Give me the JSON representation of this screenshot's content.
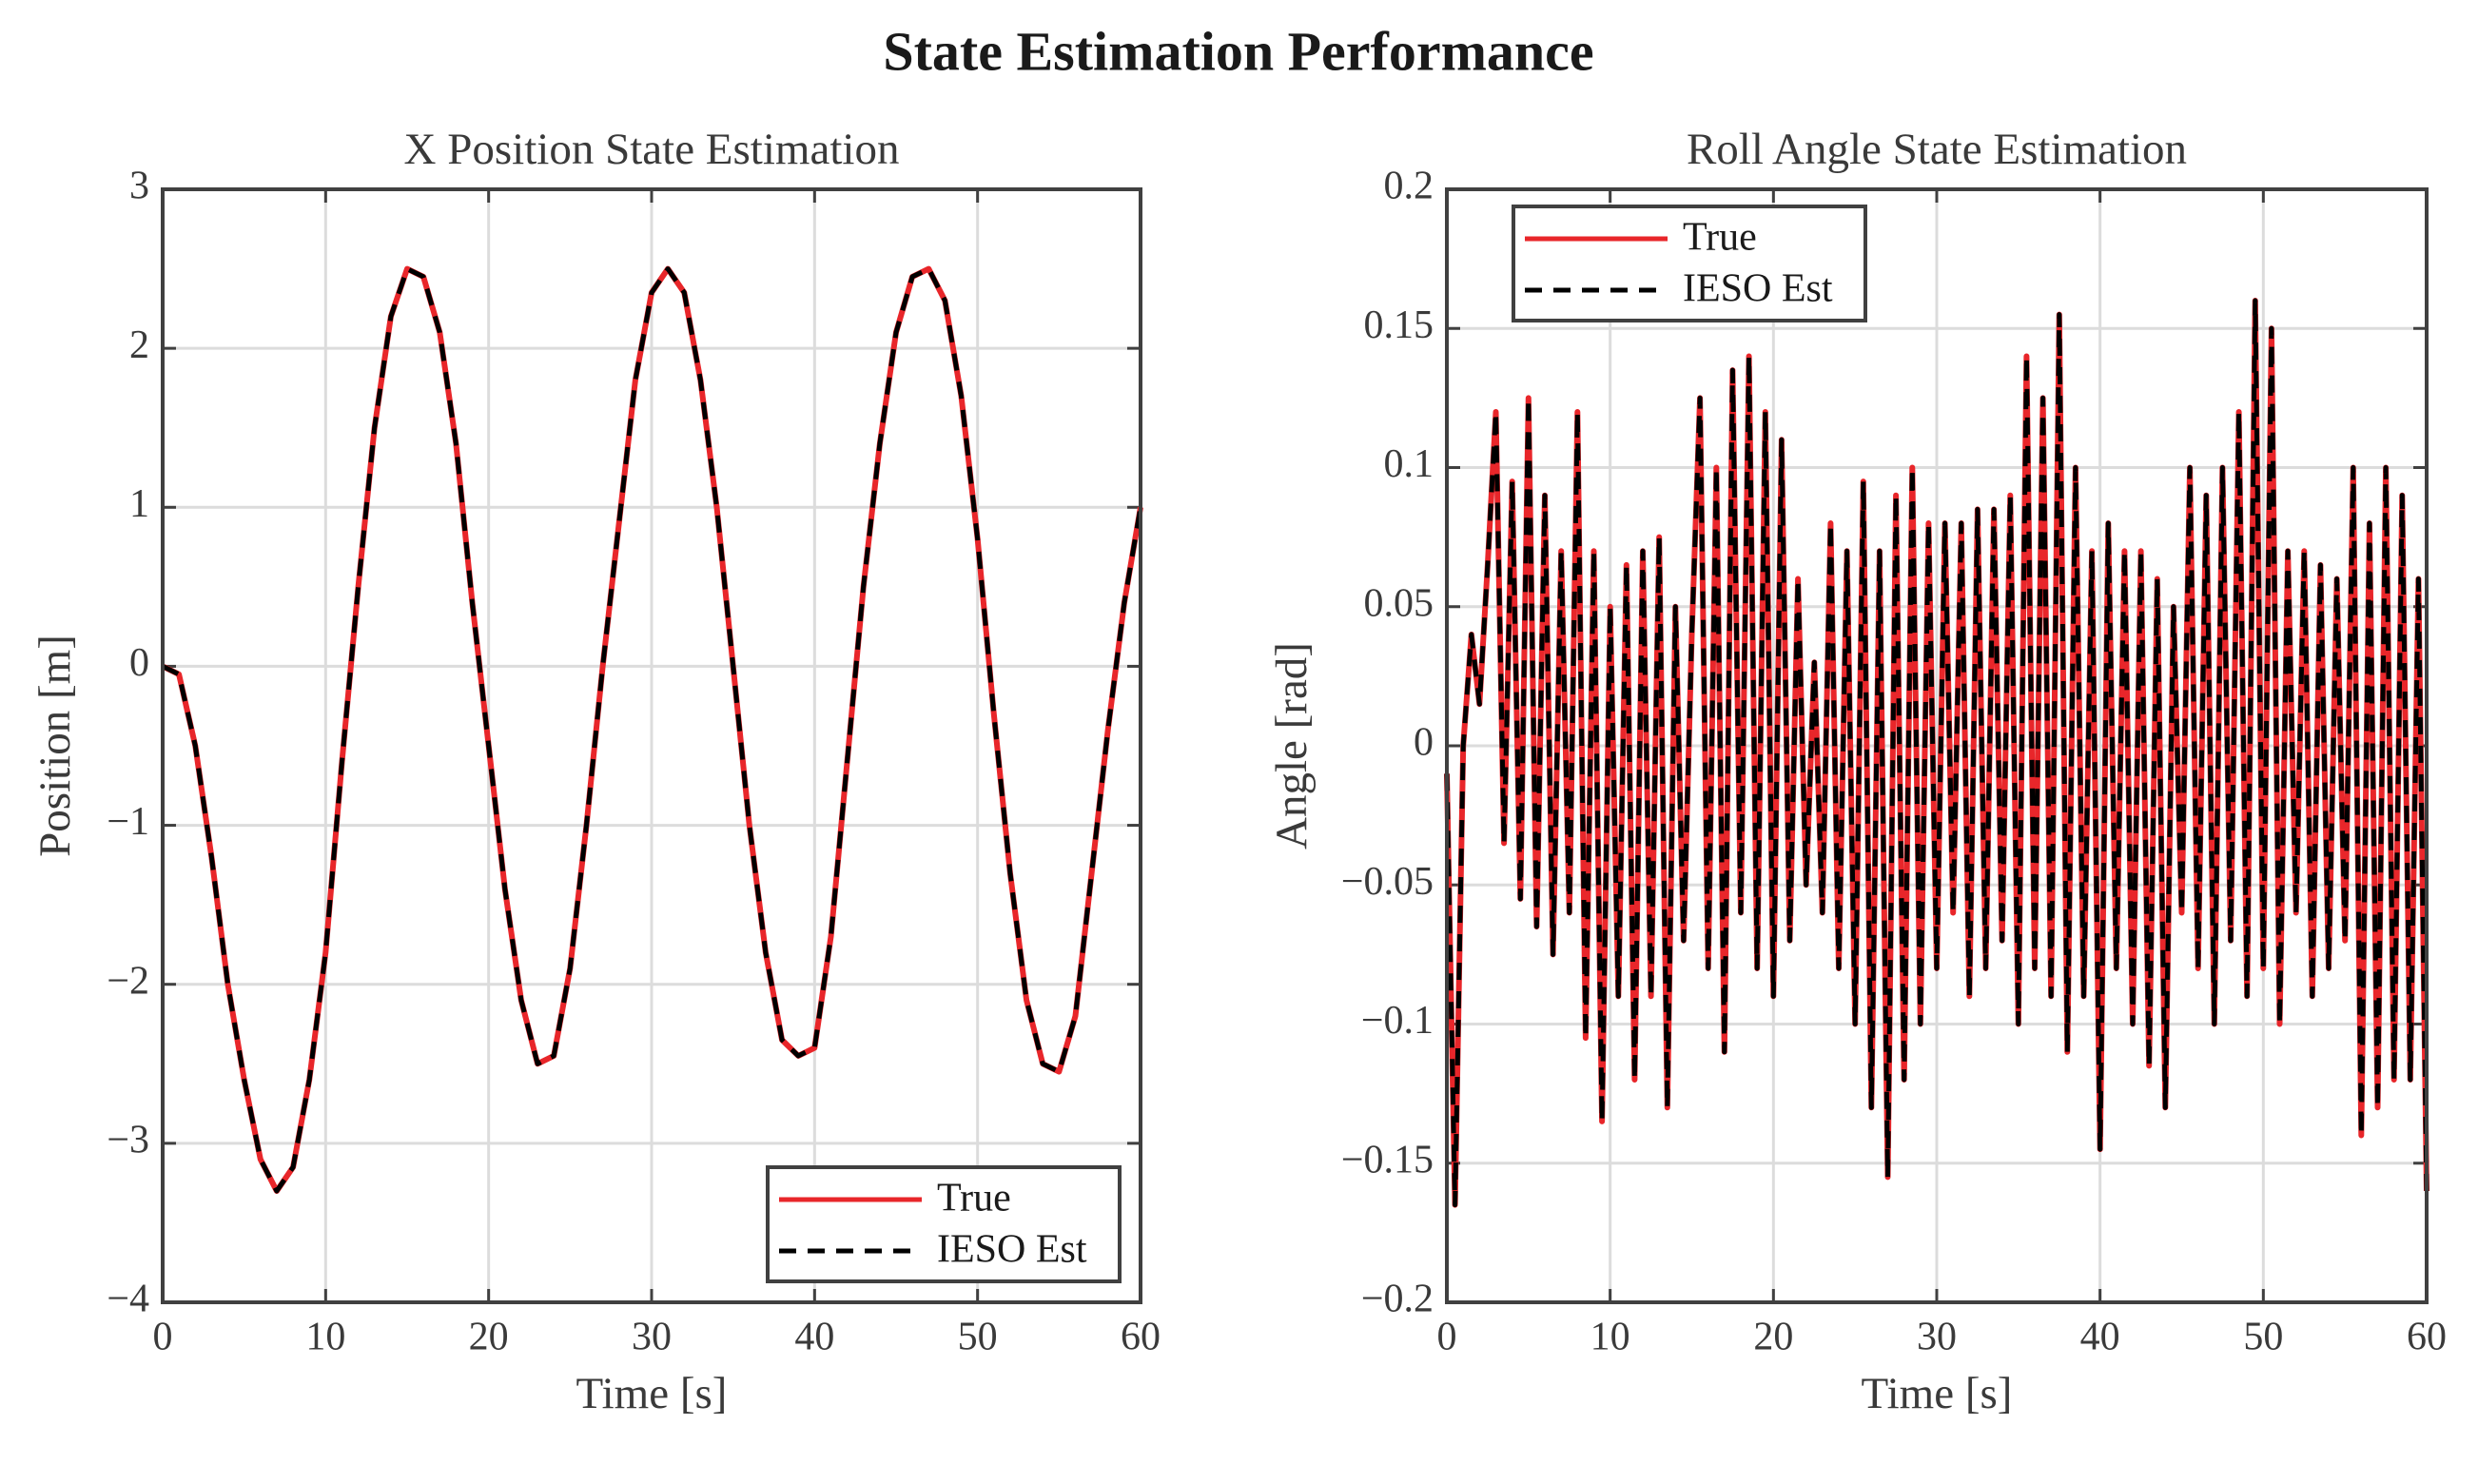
{
  "title": "State Estimation Performance",
  "chart_data": [
    {
      "type": "line",
      "title": "X Position State Estimation",
      "xlabel": "Time [s]",
      "ylabel": "Position [m]",
      "x": [
        0,
        1,
        2,
        3,
        4,
        5,
        6,
        7,
        8,
        9,
        10,
        11,
        12,
        13,
        14,
        15,
        16,
        17,
        18,
        19,
        20,
        21,
        22,
        23,
        24,
        25,
        26,
        27,
        28,
        29,
        30,
        31,
        32,
        33,
        34,
        35,
        36,
        37,
        38,
        39,
        40,
        41,
        42,
        43,
        44,
        45,
        46,
        47,
        48,
        49,
        50,
        51,
        52,
        53,
        54,
        55,
        56,
        57,
        58,
        59,
        60
      ],
      "series": [
        {
          "name": "True",
          "color": "#e8262a",
          "style": "solid",
          "values": [
            0,
            -0.05,
            -0.5,
            -1.2,
            -2.0,
            -2.6,
            -3.1,
            -3.3,
            -3.15,
            -2.6,
            -1.8,
            -0.6,
            0.5,
            1.5,
            2.2,
            2.5,
            2.45,
            2.1,
            1.4,
            0.4,
            -0.5,
            -1.4,
            -2.1,
            -2.5,
            -2.45,
            -1.9,
            -1.0,
            0.0,
            0.9,
            1.8,
            2.35,
            2.5,
            2.35,
            1.8,
            1.0,
            0.0,
            -1.0,
            -1.8,
            -2.35,
            -2.45,
            -2.4,
            -1.7,
            -0.6,
            0.5,
            1.4,
            2.1,
            2.45,
            2.5,
            2.3,
            1.7,
            0.8,
            -0.3,
            -1.3,
            -2.1,
            -2.5,
            -2.55,
            -2.2,
            -1.3,
            -0.4,
            0.4,
            1.0
          ]
        },
        {
          "name": "IESO Est",
          "color": "#000000",
          "style": "dashed",
          "values": [
            0,
            -0.05,
            -0.5,
            -1.2,
            -2.0,
            -2.6,
            -3.1,
            -3.3,
            -3.15,
            -2.6,
            -1.8,
            -0.6,
            0.5,
            1.5,
            2.2,
            2.5,
            2.45,
            2.1,
            1.4,
            0.4,
            -0.5,
            -1.4,
            -2.1,
            -2.5,
            -2.45,
            -1.9,
            -1.0,
            0.0,
            0.9,
            1.8,
            2.35,
            2.5,
            2.35,
            1.8,
            1.0,
            0.0,
            -1.0,
            -1.8,
            -2.35,
            -2.45,
            -2.4,
            -1.7,
            -0.6,
            0.5,
            1.4,
            2.1,
            2.45,
            2.5,
            2.3,
            1.7,
            0.8,
            -0.3,
            -1.3,
            -2.1,
            -2.5,
            -2.55,
            -2.2,
            -1.3,
            -0.4,
            0.4,
            1.0
          ]
        }
      ],
      "xlim": [
        0,
        60
      ],
      "xticks": [
        0,
        10,
        20,
        30,
        40,
        50,
        60
      ],
      "ylim": [
        -4,
        3
      ],
      "yticks": [
        {
          "value": -4,
          "label": "−4"
        },
        {
          "value": -3,
          "label": "−3"
        },
        {
          "value": -2,
          "label": "−2"
        },
        {
          "value": -1,
          "label": "−1"
        },
        0,
        1,
        2,
        3
      ],
      "grid": true,
      "legend": "southeast"
    },
    {
      "type": "line",
      "title": "Roll Angle State Estimation",
      "xlabel": "Time [s]",
      "ylabel": "Angle [rad]",
      "x": [
        0,
        0.5,
        1,
        1.5,
        2,
        2.5,
        3,
        3.5,
        4,
        4.5,
        5,
        5.5,
        6,
        6.5,
        7,
        7.5,
        8,
        8.5,
        9,
        9.5,
        10,
        10.5,
        11,
        11.5,
        12,
        12.5,
        13,
        13.5,
        14,
        14.5,
        15,
        15.5,
        16,
        16.5,
        17,
        17.5,
        18,
        18.5,
        19,
        19.5,
        20,
        20.5,
        21,
        21.5,
        22,
        22.5,
        23,
        23.5,
        24,
        24.5,
        25,
        25.5,
        26,
        26.5,
        27,
        27.5,
        28,
        28.5,
        29,
        29.5,
        30,
        30.5,
        31,
        31.5,
        32,
        32.5,
        33,
        33.5,
        34,
        34.5,
        35,
        35.5,
        36,
        36.5,
        37,
        37.5,
        38,
        38.5,
        39,
        39.5,
        40,
        40.5,
        41,
        41.5,
        42,
        42.5,
        43,
        43.5,
        44,
        44.5,
        45,
        45.5,
        46,
        46.5,
        47,
        47.5,
        48,
        48.5,
        49,
        49.5,
        50,
        50.5,
        51,
        51.5,
        52,
        52.5,
        53,
        53.5,
        54,
        54.5,
        55,
        55.5,
        56,
        56.5,
        57,
        57.5,
        58,
        58.5,
        59,
        59.5,
        60
      ],
      "series": [
        {
          "name": "True",
          "color": "#e8262a",
          "style": "solid",
          "values": [
            -0.01,
            -0.165,
            0.0,
            0.04,
            0.015,
            0.065,
            0.12,
            -0.035,
            0.095,
            -0.055,
            0.125,
            -0.065,
            0.09,
            -0.075,
            0.07,
            -0.06,
            0.12,
            -0.105,
            0.07,
            -0.135,
            0.05,
            -0.09,
            0.065,
            -0.12,
            0.07,
            -0.09,
            0.075,
            -0.13,
            0.05,
            -0.07,
            0.04,
            0.125,
            -0.08,
            0.1,
            -0.11,
            0.135,
            -0.06,
            0.14,
            -0.08,
            0.12,
            -0.09,
            0.11,
            -0.07,
            0.06,
            -0.05,
            0.03,
            -0.06,
            0.08,
            -0.08,
            0.07,
            -0.1,
            0.095,
            -0.13,
            0.07,
            -0.155,
            0.09,
            -0.12,
            0.1,
            -0.1,
            0.08,
            -0.08,
            0.08,
            -0.06,
            0.08,
            -0.09,
            0.085,
            -0.08,
            0.085,
            -0.07,
            0.09,
            -0.1,
            0.14,
            -0.08,
            0.125,
            -0.09,
            0.155,
            -0.11,
            0.1,
            -0.09,
            0.07,
            -0.145,
            0.08,
            -0.08,
            0.07,
            -0.1,
            0.07,
            -0.115,
            0.06,
            -0.13,
            0.05,
            -0.06,
            0.1,
            -0.08,
            0.09,
            -0.1,
            0.1,
            -0.07,
            0.12,
            -0.09,
            0.16,
            -0.08,
            0.15,
            -0.1,
            0.07,
            -0.06,
            0.07,
            -0.09,
            0.065,
            -0.08,
            0.06,
            -0.07,
            0.1,
            -0.14,
            0.08,
            -0.13,
            0.1,
            -0.12,
            0.09,
            -0.12,
            0.06,
            -0.16
          ]
        },
        {
          "name": "IESO Est",
          "color": "#000000",
          "style": "dashed",
          "values": [
            -0.01,
            -0.165,
            0.0,
            0.04,
            0.015,
            0.065,
            0.12,
            -0.035,
            0.095,
            -0.055,
            0.125,
            -0.065,
            0.09,
            -0.075,
            0.07,
            -0.06,
            0.12,
            -0.105,
            0.07,
            -0.135,
            0.05,
            -0.09,
            0.065,
            -0.12,
            0.07,
            -0.09,
            0.075,
            -0.13,
            0.05,
            -0.07,
            0.04,
            0.125,
            -0.08,
            0.1,
            -0.11,
            0.135,
            -0.06,
            0.14,
            -0.08,
            0.12,
            -0.09,
            0.11,
            -0.07,
            0.06,
            -0.05,
            0.03,
            -0.06,
            0.08,
            -0.08,
            0.07,
            -0.1,
            0.095,
            -0.13,
            0.07,
            -0.155,
            0.09,
            -0.12,
            0.1,
            -0.1,
            0.08,
            -0.08,
            0.08,
            -0.06,
            0.08,
            -0.09,
            0.085,
            -0.08,
            0.085,
            -0.07,
            0.09,
            -0.1,
            0.14,
            -0.08,
            0.125,
            -0.09,
            0.155,
            -0.11,
            0.1,
            -0.09,
            0.07,
            -0.145,
            0.08,
            -0.08,
            0.07,
            -0.1,
            0.07,
            -0.115,
            0.06,
            -0.13,
            0.05,
            -0.06,
            0.1,
            -0.08,
            0.09,
            -0.1,
            0.1,
            -0.07,
            0.12,
            -0.09,
            0.16,
            -0.08,
            0.15,
            -0.1,
            0.07,
            -0.06,
            0.07,
            -0.09,
            0.065,
            -0.08,
            0.06,
            -0.07,
            0.1,
            -0.14,
            0.08,
            -0.13,
            0.1,
            -0.12,
            0.09,
            -0.12,
            0.06,
            -0.16
          ]
        }
      ],
      "xlim": [
        0,
        60
      ],
      "xticks": [
        0,
        10,
        20,
        30,
        40,
        50,
        60
      ],
      "ylim": [
        -0.2,
        0.2
      ],
      "yticks": [
        {
          "value": -0.2,
          "label": "−0.2"
        },
        {
          "value": -0.15,
          "label": "−0.15"
        },
        {
          "value": -0.1,
          "label": "−0.1"
        },
        {
          "value": -0.05,
          "label": "−0.05"
        },
        0,
        0.05,
        0.1,
        0.15,
        0.2
      ],
      "grid": true,
      "legend": "northwest"
    }
  ]
}
